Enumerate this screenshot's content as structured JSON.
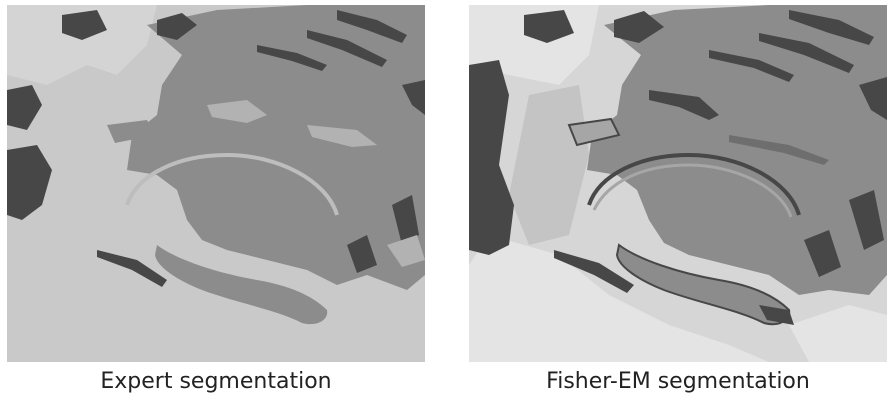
{
  "figure": {
    "left_caption": "Expert segmentation",
    "right_caption": "Fisher-EM segmentation"
  },
  "palette": {
    "background": "#c9c9c9",
    "background_light": "#d6d6d6",
    "background_lighter": "#e4e4e4",
    "mid_gray": "#8c8c8c",
    "edge_gray": "#a6a6a6",
    "dark": "#474747"
  }
}
